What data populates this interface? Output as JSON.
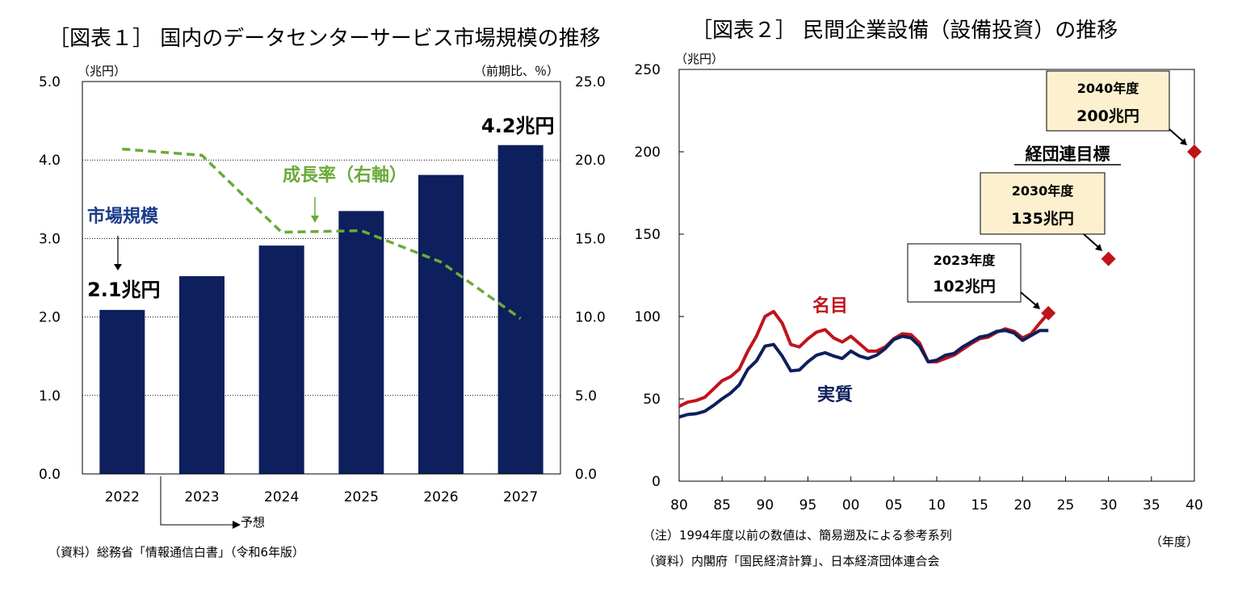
{
  "chart_data": [
    {
      "type": "bar",
      "title": "［図表１］ 国内のデータセンターサービス市場規模の推移",
      "ylabel_left": "（兆円）",
      "ylabel_right": "（前期比、％）",
      "categories": [
        "2022",
        "2023",
        "2024",
        "2025",
        "2026",
        "2027"
      ],
      "yticks_left": [
        "0.0",
        "1.0",
        "2.0",
        "3.0",
        "4.0",
        "5.0"
      ],
      "yticks_right": [
        "0.0",
        "5.0",
        "10.0",
        "15.0",
        "20.0",
        "25.0"
      ],
      "ylim": [
        0,
        5
      ],
      "ylim_right": [
        0,
        25
      ],
      "series": [
        {
          "name": "市場規模",
          "type": "bar",
          "axis": "left",
          "color": "#0d1f5c",
          "values": [
            2.09,
            2.52,
            2.91,
            3.35,
            3.81,
            4.19
          ]
        },
        {
          "name": "成長率（右軸）",
          "type": "line",
          "axis": "right",
          "color": "#6aaa3a",
          "values": [
            20.7,
            20.3,
            15.4,
            15.5,
            13.5,
            9.9
          ]
        }
      ],
      "annotations": {
        "first_value": "2.1兆円",
        "last_value": "4.2兆円",
        "bar_label": "市場規模",
        "line_label": "成長率（右軸）",
        "forecast": "予想"
      },
      "source": "（資料）総務省「情報通信白書」（令和6年版）"
    },
    {
      "type": "line",
      "title": "［図表２］ 民間企業設備（設備投資）の推移",
      "ylabel": "（兆円）",
      "xlabel": "（年度）",
      "xticks": [
        "80",
        "85",
        "90",
        "95",
        "00",
        "05",
        "10",
        "15",
        "20",
        "25",
        "30",
        "35",
        "40"
      ],
      "yticks": [
        "0",
        "50",
        "100",
        "150",
        "200",
        "250"
      ],
      "xlim": [
        1980,
        2040
      ],
      "ylim": [
        0,
        250
      ],
      "x": [
        1980,
        1981,
        1982,
        1983,
        1984,
        1985,
        1986,
        1987,
        1988,
        1989,
        1990,
        1991,
        1992,
        1993,
        1994,
        1995,
        1996,
        1997,
        1998,
        1999,
        2000,
        2001,
        2002,
        2003,
        2004,
        2005,
        2006,
        2007,
        2008,
        2009,
        2010,
        2011,
        2012,
        2013,
        2014,
        2015,
        2016,
        2017,
        2018,
        2019,
        2020,
        2021,
        2022,
        2023
      ],
      "series": [
        {
          "name": "名目",
          "color": "#c0141b",
          "values": [
            45.5,
            48.0,
            49.0,
            51.0,
            56.0,
            61.0,
            63.5,
            68.0,
            79.0,
            88.0,
            100.0,
            103.0,
            96.0,
            83.0,
            81.5,
            86.5,
            90.5,
            92.0,
            87.0,
            84.5,
            88.0,
            83.5,
            79.0,
            79.0,
            81.5,
            86.5,
            89.5,
            89.0,
            84.0,
            72.5,
            72.5,
            74.5,
            76.5,
            80.0,
            83.5,
            86.5,
            87.5,
            90.5,
            92.5,
            91.0,
            87.0,
            89.5,
            96.0,
            102.0
          ]
        },
        {
          "name": "実質",
          "color": "#0d1f5c",
          "values": [
            39.0,
            40.5,
            41.0,
            42.5,
            46.0,
            50.0,
            53.5,
            58.5,
            68.0,
            73.0,
            82.0,
            83.0,
            76.0,
            67.0,
            67.5,
            72.5,
            76.5,
            78.0,
            76.0,
            74.5,
            79.0,
            76.0,
            74.5,
            76.5,
            80.5,
            86.0,
            88.0,
            87.0,
            82.0,
            72.5,
            73.5,
            76.5,
            77.5,
            81.5,
            84.5,
            87.5,
            88.5,
            91.0,
            91.5,
            90.0,
            85.5,
            88.5,
            91.5,
            91.5
          ]
        }
      ],
      "targets": [
        {
          "x": 2023,
          "y": 102,
          "label_year": "2023年度",
          "label_value": "102兆円"
        },
        {
          "x": 2030,
          "y": 135,
          "label_year": "2030年度",
          "label_value": "135兆円"
        },
        {
          "x": 2040,
          "y": 200,
          "label_year": "2040年度",
          "label_value": "200兆円"
        }
      ],
      "target_color": "#c0141b",
      "annotations": {
        "nominal_label": "名目",
        "real_label": "実質",
        "target_heading": "経団連目標"
      },
      "notes": [
        "（注）1994年度以前の数値は、簡易遡及による参考系列",
        "（資料）内閣府「国民経済計算」、日本経済団体連合会"
      ]
    }
  ]
}
